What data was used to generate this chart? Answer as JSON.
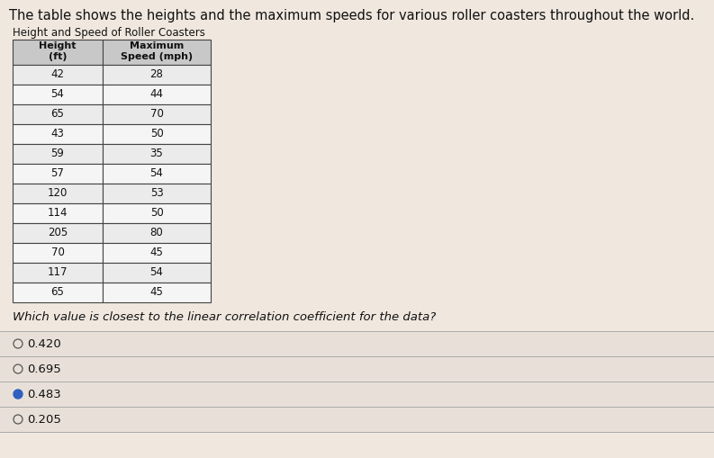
{
  "title_text": "The table shows the heights and the maximum speeds for various roller coasters throughout the world.",
  "subtitle_text": "Height and Speed of Roller Coasters",
  "col_headers": [
    "Height\n(ft)",
    "Maximum\nSpeed (mph)"
  ],
  "rows": [
    [
      42,
      28
    ],
    [
      54,
      44
    ],
    [
      65,
      70
    ],
    [
      43,
      50
    ],
    [
      59,
      35
    ],
    [
      57,
      54
    ],
    [
      120,
      53
    ],
    [
      114,
      50
    ],
    [
      205,
      80
    ],
    [
      70,
      45
    ],
    [
      117,
      54
    ],
    [
      65,
      45
    ]
  ],
  "question_text": "Which value is closest to the linear correlation coefficient for the data?",
  "options": [
    "0.420",
    "0.695",
    "0.483",
    "0.205"
  ],
  "selected_option": 2,
  "bg_color": "#f0e8df",
  "table_header_bg": "#c8c8c8",
  "table_row_bg_light": "#ebebeb",
  "table_row_bg_white": "#f5f5f5",
  "table_border_color": "#444444",
  "option_section_bg": "#e8e0d8",
  "title_fontsize": 10.5,
  "subtitle_fontsize": 8.5,
  "table_header_fontsize": 8,
  "table_data_fontsize": 8.5,
  "option_fontsize": 9.5,
  "question_fontsize": 9.5,
  "radio_selected_color": "#3060c0",
  "radio_unselected_color": "#555555",
  "line_color": "#aaaaaa",
  "text_color": "#111111"
}
